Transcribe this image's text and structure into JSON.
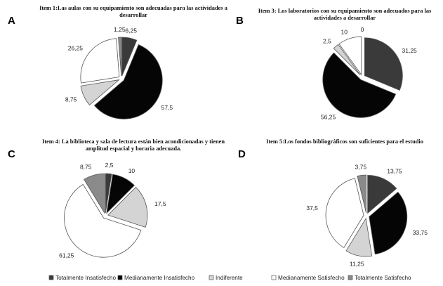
{
  "legend": [
    {
      "label": "Totalmente Insatisfecho",
      "color": "#3a3a3a"
    },
    {
      "label": "Medianamente Insatisfecho",
      "color": "#050505"
    },
    {
      "label": "Indiferente",
      "color": "#d4d4d4"
    },
    {
      "label": "Medianamente Satisfecho",
      "color": "#ffffff"
    },
    {
      "label": "Totalmente  Satisfecho",
      "color": "#8a8a8a"
    }
  ],
  "chart_data": [
    {
      "type": "pie",
      "panel": "A",
      "title_lines": [
        "Item 1:Las aulas con su equipamiento son adecuadas para las actividades a",
        "desarrollar"
      ],
      "categories": [
        "Totalmente Insatisfecho",
        "Medianamente Insatisfecho",
        "Indiferente",
        "Medianamente Satisfecho",
        "Totalmente  Satisfecho"
      ],
      "values": [
        6.25,
        57.5,
        8.75,
        26.25,
        1.25
      ],
      "value_labels": [
        "6,25",
        "57,5",
        "8,75",
        "26,25",
        "1,25"
      ],
      "exploded": true
    },
    {
      "type": "pie",
      "panel": "B",
      "title_lines": [
        "Item 3: Los laboratorios con su equipamiento son adecuados para las",
        "actividades a desarrollar"
      ],
      "categories": [
        "Totalmente Insatisfecho",
        "Medianamente Insatisfecho",
        "Indiferente",
        "Medianamente Satisfecho",
        "Totalmente  Satisfecho"
      ],
      "values": [
        31.25,
        56.25,
        2.5,
        10,
        0
      ],
      "value_labels": [
        "31,25",
        "56,25",
        "2,5",
        "10",
        "0"
      ],
      "exploded": true
    },
    {
      "type": "pie",
      "panel": "C",
      "title_lines": [
        "Item 4: La biblioteca y sala de lectura están bien  acondicionadas y tienen",
        "amplitud espacial y horaria adecuada."
      ],
      "categories": [
        "Totalmente Insatisfecho",
        "Medianamente Insatisfecho",
        "Indiferente",
        "Medianamente Satisfecho",
        "Totalmente  Satisfecho"
      ],
      "values": [
        2.5,
        10,
        17.5,
        61.25,
        8.75
      ],
      "value_labels": [
        "2,5",
        "10",
        "17,5",
        "61,25",
        "8,75"
      ],
      "exploded": true
    },
    {
      "type": "pie",
      "panel": "D",
      "title_lines": [
        "Item 5:Los fondos bibliográficos son suficientes para el estudio"
      ],
      "categories": [
        "Totalmente Insatisfecho",
        "Medianamente Insatisfecho",
        "Indiferente",
        "Medianamente Satisfecho",
        "Totalmente  Satisfecho"
      ],
      "values": [
        13.75,
        33.75,
        11.25,
        37.5,
        3.75
      ],
      "value_labels": [
        "13,75",
        "33,75",
        "11,25",
        "37,5",
        "3,75"
      ],
      "exploded": true
    }
  ]
}
